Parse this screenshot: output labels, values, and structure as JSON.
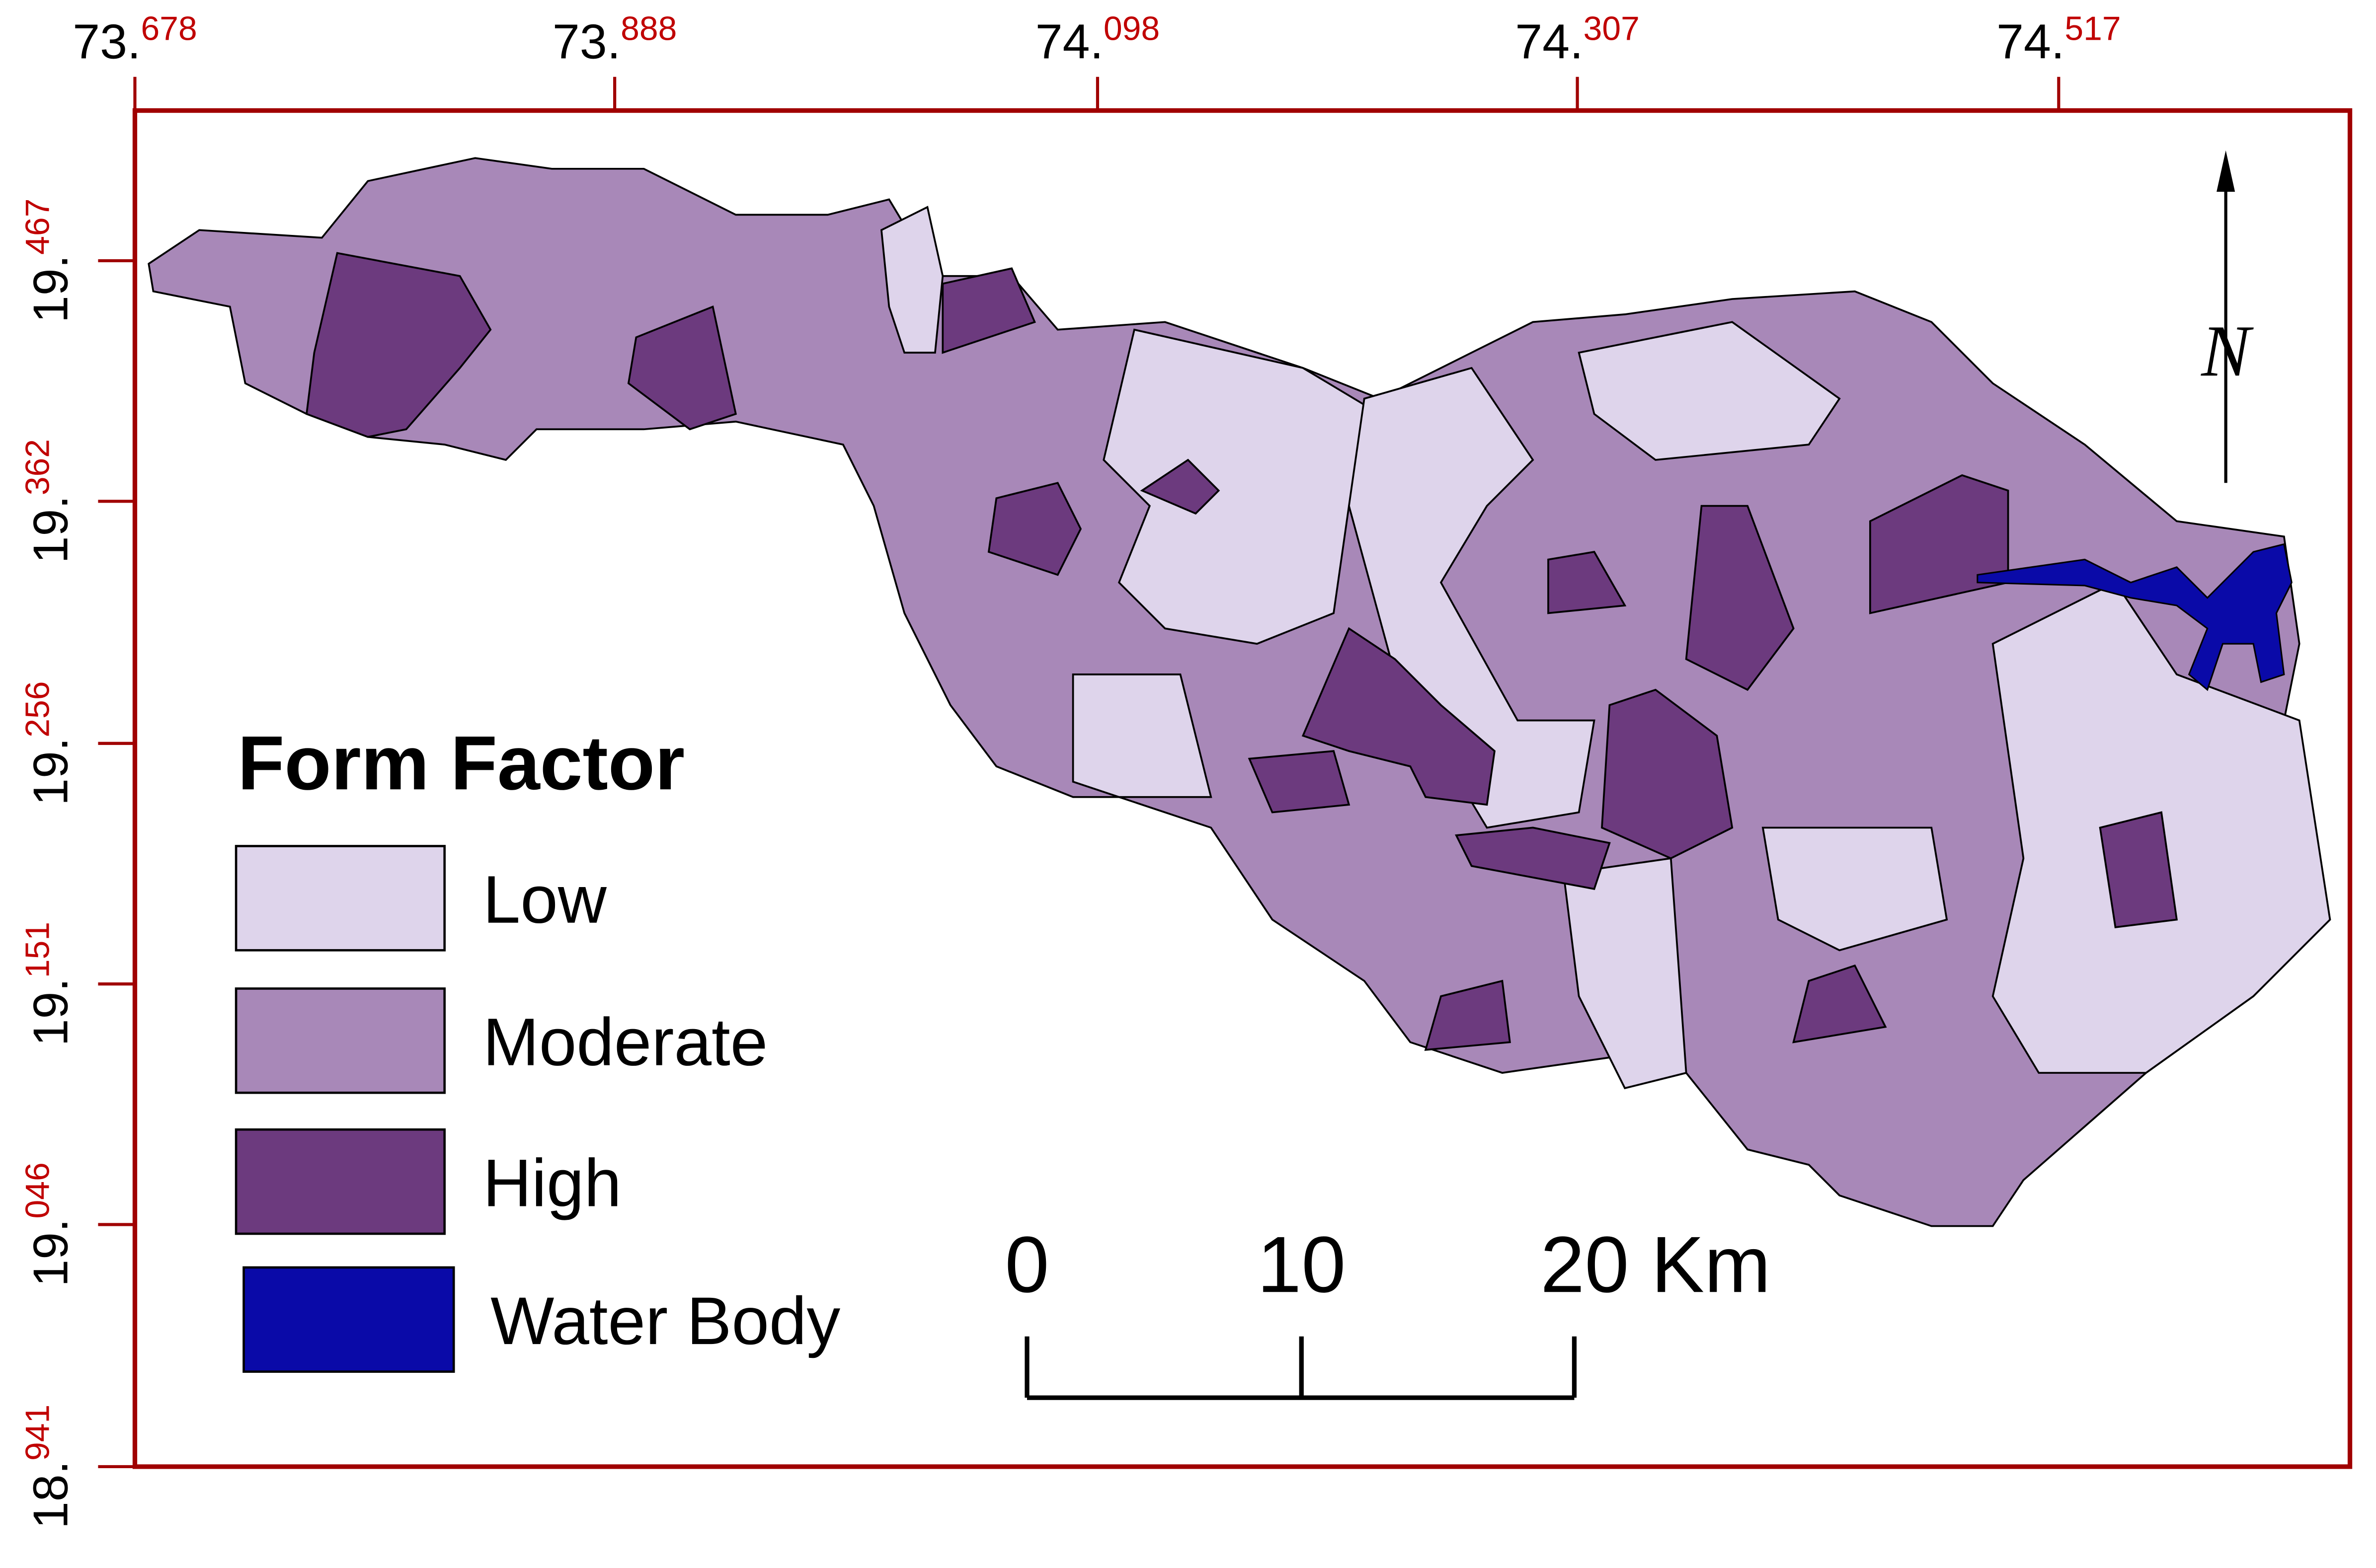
{
  "map": {
    "x_ticks": [
      {
        "major": "73.",
        "minor": "678"
      },
      {
        "major": "73.",
        "minor": "888"
      },
      {
        "major": "74.",
        "minor": "098"
      },
      {
        "major": "74.",
        "minor": "307"
      },
      {
        "major": "74.",
        "minor": "517"
      }
    ],
    "y_ticks": [
      {
        "major": "19.",
        "minor": "467"
      },
      {
        "major": "19.",
        "minor": "362"
      },
      {
        "major": "19.",
        "minor": "256"
      },
      {
        "major": "19.",
        "minor": "151"
      },
      {
        "major": "19.",
        "minor": "046"
      },
      {
        "major": "18.",
        "minor": "941"
      }
    ],
    "legend": {
      "title": "Form Factor",
      "items": [
        {
          "label": "Low",
          "color": "#ded4eb"
        },
        {
          "label": "Moderate",
          "color": "#a888b8"
        },
        {
          "label": "High",
          "color": "#6c3a7e"
        },
        {
          "label": "Water Body",
          "color": "#0a0aa8"
        }
      ]
    },
    "scale_bar": {
      "labels": [
        "0",
        "10",
        "20 Km"
      ]
    },
    "north": "N"
  }
}
